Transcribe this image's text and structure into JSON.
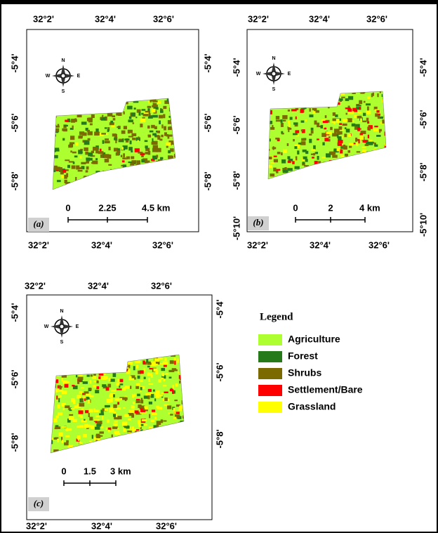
{
  "panels": [
    {
      "label": "(a)",
      "top_labels": [
        "32°2'",
        "32°4'",
        "32°6'"
      ],
      "bottom_labels": [
        "32°2'",
        "32°4'",
        "32°6'"
      ],
      "left_labels": [
        "-5°4'",
        "-5°6'",
        "-5°8'"
      ],
      "right_labels": [
        "-5°4'",
        "-5°6'",
        "-5°8'"
      ],
      "compass": {
        "n": "N",
        "s": "S",
        "e": "E",
        "w": "W"
      },
      "scale_labels": [
        "0",
        "2.25",
        "4.5 km"
      ]
    },
    {
      "label": "(b)",
      "top_labels": [
        "32°2'",
        "32°4'",
        "32°6'"
      ],
      "bottom_labels": [
        "32°2'",
        "32°4'",
        "32°6'"
      ],
      "left_labels": [
        "-5°4'",
        "-5°6'",
        "-5°8'",
        "-5°10'"
      ],
      "right_labels": [
        "-5°4'",
        "-5°6'",
        "-5°8'",
        "-5°10'"
      ],
      "compass": {
        "n": "N",
        "s": "S",
        "e": "E",
        "w": "W"
      },
      "scale_labels": [
        "0",
        "2",
        "4 km"
      ]
    },
    {
      "label": "(c)",
      "top_labels": [
        "32°2'",
        "32°4'",
        "32°6'"
      ],
      "bottom_labels": [
        "32°2'",
        "32°4'",
        "32°6'"
      ],
      "left_labels": [
        "-5°4'",
        "-5°6'",
        "-5°8'"
      ],
      "right_labels": [
        "-5°4'",
        "-5°6'",
        "-5°8'"
      ],
      "compass": {
        "n": "N",
        "s": "S",
        "e": "E",
        "w": "W"
      },
      "scale_labels": [
        "0",
        "1.5",
        "3 km"
      ]
    }
  ],
  "legend": {
    "title": "Legend",
    "items": [
      {
        "label": "Agriculture",
        "color": "#adff2f"
      },
      {
        "label": "Forest",
        "color": "#267a1a"
      },
      {
        "label": "Shrubs",
        "color": "#7a6a00"
      },
      {
        "label": "Settlement/Bare",
        "color": "#ff0000"
      },
      {
        "label": "Grassland",
        "color": "#ffff00"
      }
    ]
  }
}
